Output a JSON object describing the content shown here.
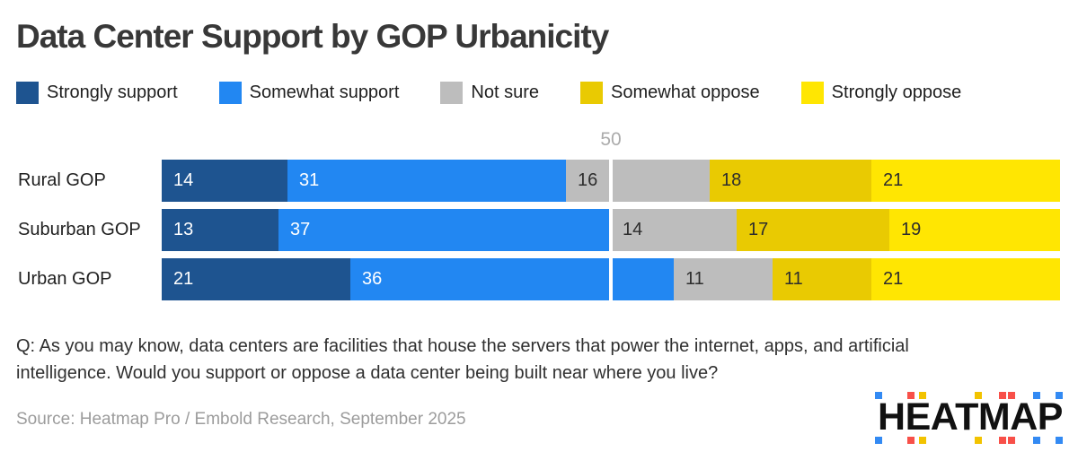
{
  "title": "Data Center Support by GOP Urbanicity",
  "legend": {
    "items": [
      {
        "label": "Strongly support",
        "color": "#1e5490"
      },
      {
        "label": "Somewhat support",
        "color": "#2287f2"
      },
      {
        "label": "Not sure",
        "color": "#bdbdbd"
      },
      {
        "label": "Somewhat oppose",
        "color": "#e9ca02"
      },
      {
        "label": "Strongly oppose",
        "color": "#ffe602"
      }
    ]
  },
  "chart_data": {
    "type": "bar",
    "orientation": "horizontal",
    "stacked": true,
    "xlim": [
      0,
      100
    ],
    "gridline": {
      "value": 50,
      "label": "50"
    },
    "categories": [
      "Rural GOP",
      "Suburban GOP",
      "Urban GOP"
    ],
    "series": [
      {
        "name": "Strongly support",
        "color": "#1e5490",
        "label_color": "#ffffff",
        "values": [
          14,
          13,
          21
        ]
      },
      {
        "name": "Somewhat support",
        "color": "#2287f2",
        "label_color": "#ffffff",
        "values": [
          31,
          37,
          36
        ]
      },
      {
        "name": "Not sure",
        "color": "#bdbdbd",
        "label_color": "#2d2d2d",
        "values": [
          16,
          14,
          11
        ]
      },
      {
        "name": "Somewhat oppose",
        "color": "#e9ca02",
        "label_color": "#2d2d2d",
        "values": [
          18,
          17,
          11
        ]
      },
      {
        "name": "Strongly oppose",
        "color": "#ffe602",
        "label_color": "#2d2d2d",
        "values": [
          21,
          19,
          21
        ]
      }
    ]
  },
  "question": {
    "lines": [
      "Q: As you may know, data centers are facilities that house the servers that power the internet, apps, and artificial",
      "intelligence. Would you support or oppose a data center being built near where you live?"
    ]
  },
  "source": "Source: Heatmap Pro / Embold Research, September 2025",
  "logo": {
    "text": "HEATMAP",
    "palette": {
      "blue": "#338af3",
      "red": "#f85049",
      "yellow": "#f2c300"
    },
    "squares": [
      "blue",
      "red",
      "yellow",
      "yellow",
      "red",
      "red",
      "blue",
      "blue"
    ]
  }
}
